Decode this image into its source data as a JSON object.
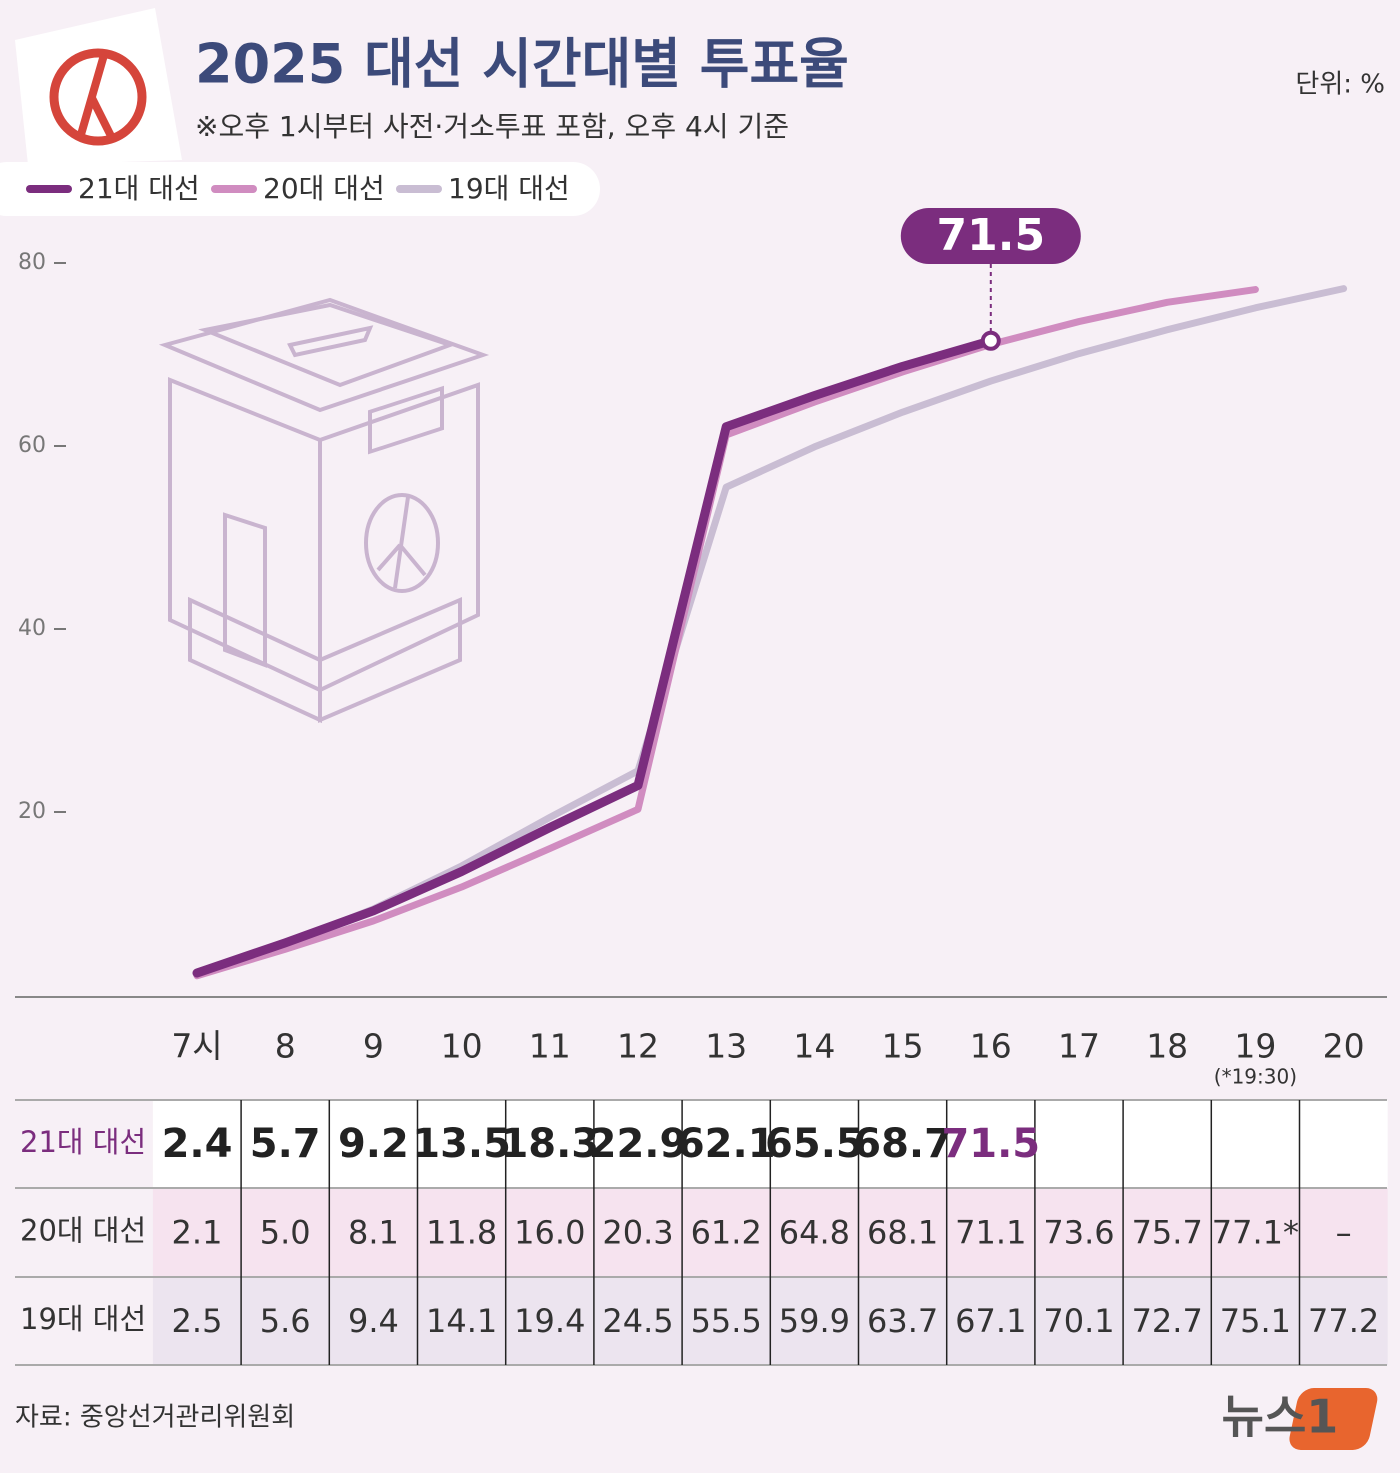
{
  "chart_data": {
    "type": "line",
    "title": "2025 대선 시간대별 투표율",
    "subtitle": "※오후 1시부터 사전·거소투표 포함, 오후 4시 기준",
    "unit": "단위: %",
    "source": "자료: 중앙선거관리위원회",
    "brand": "뉴스1",
    "x_note": "(*19:30)",
    "categories": [
      "7시",
      "8",
      "9",
      "10",
      "11",
      "12",
      "13",
      "14",
      "15",
      "16",
      "17",
      "18",
      "19",
      "20"
    ],
    "ylim": [
      0,
      80
    ],
    "yticks": [
      20,
      40,
      60,
      80
    ],
    "series": [
      {
        "name": "21대 대선",
        "color": "#7b2d7e",
        "values": [
          2.4,
          5.7,
          9.2,
          13.5,
          18.3,
          22.9,
          62.1,
          65.5,
          68.7,
          71.5,
          null,
          null,
          null,
          null
        ]
      },
      {
        "name": "20대 대선",
        "color": "#d08cc0",
        "values": [
          2.1,
          5.0,
          8.1,
          11.8,
          16.0,
          20.3,
          61.2,
          64.8,
          68.1,
          71.1,
          73.6,
          75.7,
          77.1,
          null
        ],
        "value_labels": [
          "2.1",
          "5.0",
          "8.1",
          "11.8",
          "16.0",
          "20.3",
          "61.2",
          "64.8",
          "68.1",
          "71.1",
          "73.6",
          "75.7",
          "77.1*",
          "–"
        ]
      },
      {
        "name": "19대 대선",
        "color": "#c9bdd3",
        "values": [
          2.5,
          5.6,
          9.4,
          14.1,
          19.4,
          24.5,
          55.5,
          59.9,
          63.7,
          67.1,
          70.1,
          72.7,
          75.1,
          77.2
        ]
      }
    ]
  }
}
